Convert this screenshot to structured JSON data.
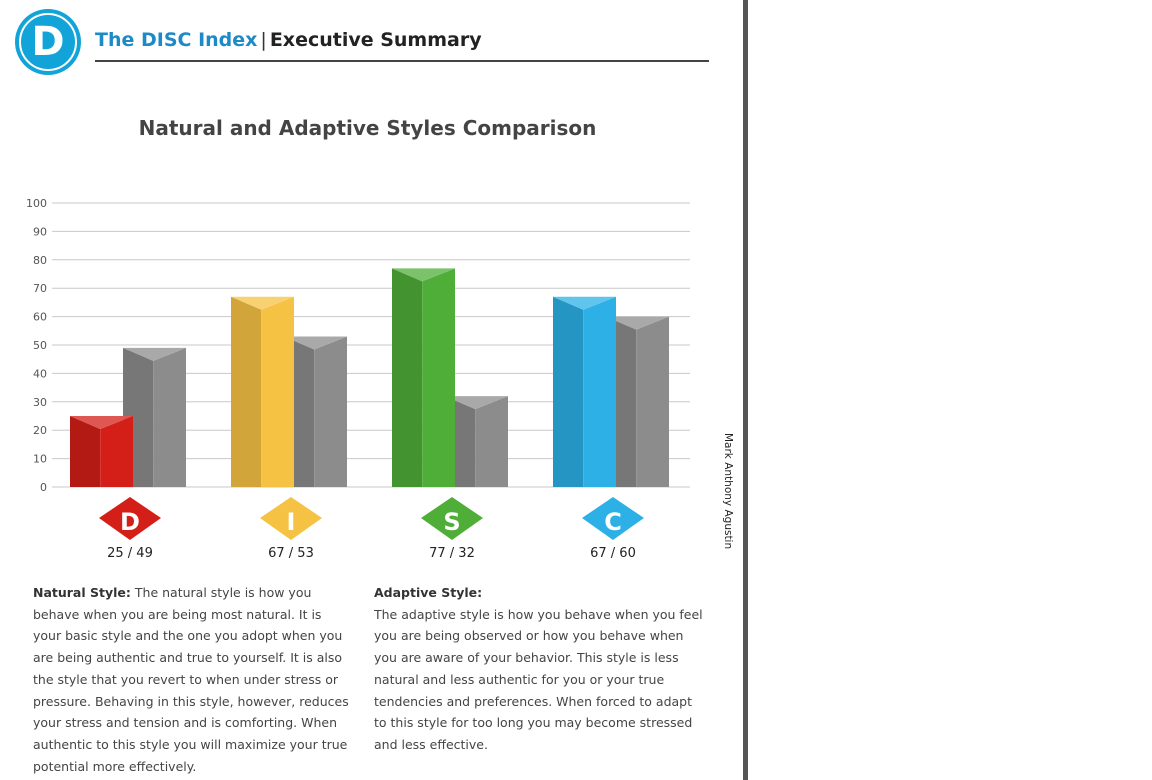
{
  "header": {
    "logo_letter": "D",
    "brand": "The DISC Index",
    "section": "Executive Summary"
  },
  "side_label": "Mark Anthony Agustin",
  "chart_data": {
    "type": "bar",
    "title": "Natural and Adaptive Styles Comparison",
    "categories": [
      "D",
      "I",
      "S",
      "C"
    ],
    "series": [
      {
        "values": [
          25,
          67,
          77,
          67
        ]
      },
      {
        "values": [
          49,
          53,
          32,
          60
        ]
      }
    ],
    "ylim": [
      0,
      100
    ],
    "yticks": [
      "0",
      "10",
      "20",
      "30",
      "40",
      "50",
      "60",
      "70",
      "80",
      "90",
      "100"
    ],
    "grid": true,
    "colors": {
      "D": "#d41f18",
      "I": "#f6c244",
      "S": "#4fae38",
      "C": "#2cb0e6",
      "adaptive": "#8c8c8c"
    },
    "score_labels": [
      "25 / 49",
      "67 / 53",
      "77 / 32",
      "67 / 60"
    ]
  },
  "text": {
    "natural_heading": "Natural Style:",
    "natural_body": "The natural style is how you behave when you are being  most natural. It is your basic style and the one you adopt when you are being authentic and true to yourself.  It is also the style that you revert to when under stress or pressure. Behaving in this style, however, reduces your stress and tension and is comforting. When authentic to this style you will maximize your true potential more effectively.",
    "adaptive_heading": "Adaptive Style:",
    "adaptive_body": "The adaptive style is how you behave when you feel you are being observed or how you behave when you are aware of your behavior. This style is less natural and less authentic for you or your true tendencies and preferences. When forced to adapt to this style for too long you may become stressed and less effective."
  }
}
